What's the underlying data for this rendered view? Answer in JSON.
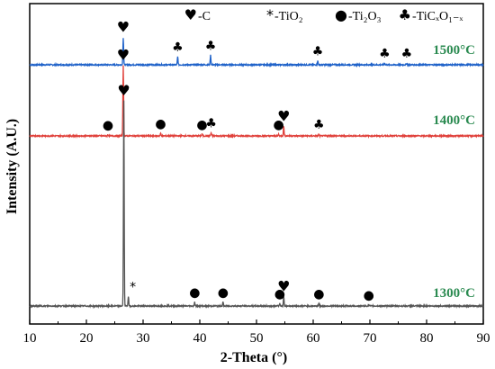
{
  "chart_data": {
    "type": "line",
    "xlabel": "2-Theta (°)",
    "ylabel": "Intensity (A.U.)",
    "xlim": [
      10,
      90
    ],
    "x_ticks": [
      "10",
      "20",
      "30",
      "40",
      "50",
      "60",
      "70",
      "80",
      "90"
    ],
    "grid": false,
    "y_ticks_shown": false,
    "legend": [
      {
        "symbol": "♥",
        "label": "-C",
        "symbol_icon": "heart-icon"
      },
      {
        "symbol": "*",
        "label": "-TiO₂",
        "symbol_icon": "asterisk-icon"
      },
      {
        "symbol": "●",
        "label": "-Ti₂O₃",
        "symbol_icon": "circle-icon"
      },
      {
        "symbol": "♣",
        "label": "-TiCₓO₁₋ₓ",
        "symbol_icon": "club-icon"
      }
    ],
    "series": [
      {
        "name": "1500°C",
        "color": "#1f62c9",
        "peaks": [
          {
            "x": 26.5,
            "h": 0.085
          },
          {
            "x": 36.1,
            "h": 0.025
          },
          {
            "x": 41.9,
            "h": 0.03
          },
          {
            "x": 60.8,
            "h": 0.012
          },
          {
            "x": 72.6,
            "h": 0.006
          },
          {
            "x": 76.5,
            "h": 0.005
          }
        ],
        "markers": [
          {
            "x": 26.5,
            "symbol": "♥"
          },
          {
            "x": 36.1,
            "symbol": "♣"
          },
          {
            "x": 41.9,
            "symbol": "♣"
          },
          {
            "x": 60.8,
            "symbol": "♣"
          },
          {
            "x": 72.6,
            "symbol": "♣"
          },
          {
            "x": 76.5,
            "symbol": "♣"
          }
        ]
      },
      {
        "name": "1400°C",
        "color": "#e0403a",
        "peaks": [
          {
            "x": 23.8,
            "h": 0.004
          },
          {
            "x": 26.5,
            "h": 0.22
          },
          {
            "x": 33.1,
            "h": 0.008
          },
          {
            "x": 40.4,
            "h": 0.006
          },
          {
            "x": 42.0,
            "h": 0.01
          },
          {
            "x": 53.9,
            "h": 0.005
          },
          {
            "x": 54.8,
            "h": 0.03
          },
          {
            "x": 61.0,
            "h": 0.005
          }
        ],
        "markers": [
          {
            "x": 23.8,
            "symbol": "●"
          },
          {
            "x": 26.5,
            "symbol": "♥"
          },
          {
            "x": 33.1,
            "symbol": "●"
          },
          {
            "x": 40.4,
            "symbol": "●"
          },
          {
            "x": 42.0,
            "symbol": "♣"
          },
          {
            "x": 53.9,
            "symbol": "●"
          },
          {
            "x": 54.8,
            "symbol": "♥"
          },
          {
            "x": 61.0,
            "symbol": "♣"
          }
        ]
      },
      {
        "name": "1300°C",
        "color": "#555555",
        "peaks": [
          {
            "x": 26.6,
            "h": 0.64
          },
          {
            "x": 27.4,
            "h": 0.03
          },
          {
            "x": 39.1,
            "h": 0.012
          },
          {
            "x": 44.1,
            "h": 0.012
          },
          {
            "x": 54.1,
            "h": 0.008
          },
          {
            "x": 54.8,
            "h": 0.03
          },
          {
            "x": 61.0,
            "h": 0.008
          },
          {
            "x": 69.8,
            "h": 0.004
          }
        ],
        "markers": [
          {
            "x": 26.6,
            "symbol": "♥"
          },
          {
            "x": 27.4,
            "symbol": "*"
          },
          {
            "x": 39.1,
            "symbol": "●"
          },
          {
            "x": 44.1,
            "symbol": "●"
          },
          {
            "x": 54.1,
            "symbol": "●"
          },
          {
            "x": 54.8,
            "symbol": "♥"
          },
          {
            "x": 61.0,
            "symbol": "●"
          },
          {
            "x": 69.8,
            "symbol": "●"
          }
        ]
      }
    ]
  },
  "colors": {
    "label_green": "#2a8a50",
    "axis": "#000000"
  }
}
